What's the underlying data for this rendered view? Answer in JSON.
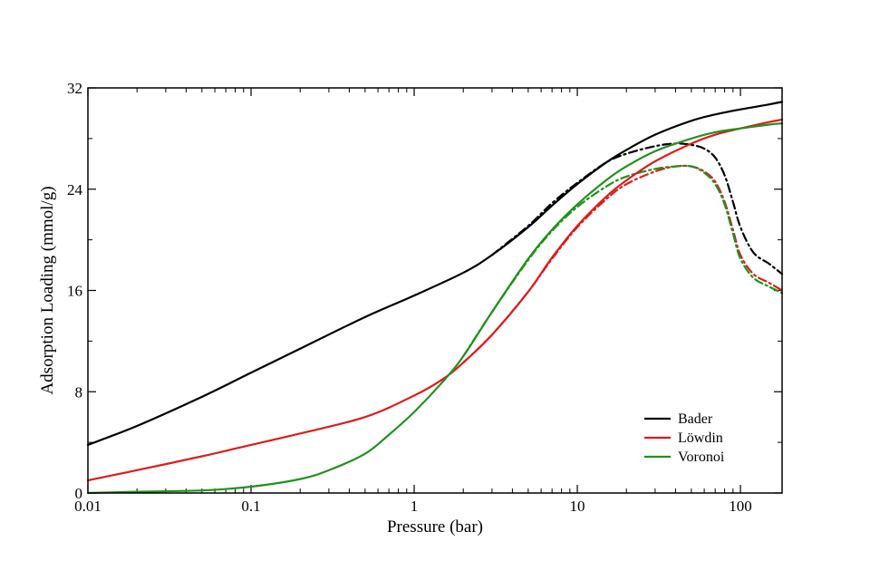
{
  "chart_data": {
    "type": "line",
    "title": "",
    "xlabel": "Pressure (bar)",
    "ylabel": "Adsorption Loading (mmol/g)",
    "xscale": "log",
    "xlim": [
      0.01,
      180
    ],
    "ylim": [
      0,
      32
    ],
    "xticks": [
      {
        "value": 0.01,
        "label": "0.01"
      },
      {
        "value": 0.1,
        "label": "0.1"
      },
      {
        "value": 1,
        "label": "1"
      },
      {
        "value": 10,
        "label": "10"
      },
      {
        "value": 100,
        "label": "100"
      }
    ],
    "yticks": [
      {
        "value": 0,
        "label": "0"
      },
      {
        "value": 8,
        "label": "8"
      },
      {
        "value": 16,
        "label": "16"
      },
      {
        "value": 24,
        "label": "24"
      },
      {
        "value": 32,
        "label": "32"
      }
    ],
    "grid": false,
    "legend_position": "bottom-right",
    "series": [
      {
        "name": "Bader",
        "color": "#000000",
        "style": "solid",
        "x": [
          0.01,
          0.02,
          0.05,
          0.1,
          0.2,
          0.5,
          1,
          2,
          3,
          5,
          7,
          10,
          15,
          20,
          30,
          50,
          70,
          100,
          150,
          180
        ],
        "y": [
          3.8,
          5.3,
          7.6,
          9.5,
          11.4,
          13.9,
          15.6,
          17.4,
          18.8,
          21.0,
          22.7,
          24.4,
          26.1,
          27.1,
          28.3,
          29.4,
          29.9,
          30.3,
          30.7,
          30.9
        ]
      },
      {
        "name": "Löwdin",
        "color": "#dd1c1c",
        "style": "solid",
        "x": [
          0.01,
          0.02,
          0.05,
          0.1,
          0.2,
          0.5,
          1,
          1.5,
          2,
          3,
          5,
          7,
          10,
          15,
          20,
          30,
          50,
          70,
          100,
          150,
          180
        ],
        "y": [
          1.0,
          1.8,
          2.9,
          3.8,
          4.7,
          6.0,
          7.7,
          9.0,
          10.3,
          12.5,
          15.9,
          18.6,
          21.1,
          23.4,
          24.7,
          26.2,
          27.6,
          28.3,
          28.8,
          29.3,
          29.5
        ]
      },
      {
        "name": "Voronoi",
        "color": "#22911f",
        "style": "solid",
        "x": [
          0.01,
          0.02,
          0.05,
          0.1,
          0.2,
          0.3,
          0.5,
          0.7,
          1,
          1.5,
          2,
          3,
          5,
          7,
          10,
          15,
          20,
          30,
          50,
          70,
          100,
          150,
          180
        ],
        "y": [
          0.0,
          0.1,
          0.2,
          0.5,
          1.1,
          1.8,
          3.1,
          4.6,
          6.4,
          8.8,
          10.8,
          14.3,
          18.5,
          20.8,
          22.8,
          24.7,
          25.8,
          27.0,
          28.0,
          28.5,
          28.8,
          29.1,
          29.2
        ]
      },
      {
        "name": "",
        "color": "#000000",
        "style": "dashdot",
        "x": [
          3,
          5,
          7,
          10,
          15,
          20,
          30,
          40,
          50,
          60,
          70,
          80,
          90,
          100,
          120,
          150,
          180
        ],
        "y": [
          18.8,
          21.1,
          22.9,
          24.5,
          26.1,
          26.8,
          27.4,
          27.6,
          27.5,
          27.2,
          26.5,
          25.1,
          23.0,
          21.0,
          19.0,
          18.1,
          17.3
        ]
      },
      {
        "name": "",
        "color": "#dd1c1c",
        "style": "dashdot",
        "x": [
          2,
          3,
          5,
          7,
          10,
          15,
          20,
          30,
          40,
          50,
          60,
          70,
          80,
          90,
          100,
          120,
          150,
          180
        ],
        "y": [
          10.3,
          12.5,
          15.9,
          18.5,
          21.0,
          23.2,
          24.4,
          25.4,
          25.8,
          25.8,
          25.4,
          24.6,
          23.0,
          20.8,
          18.8,
          17.3,
          16.6,
          16.0
        ]
      },
      {
        "name": "",
        "color": "#22911f",
        "style": "dashdot",
        "x": [
          2,
          3,
          5,
          7,
          10,
          15,
          20,
          30,
          40,
          50,
          60,
          70,
          80,
          90,
          100,
          120,
          150,
          180
        ],
        "y": [
          10.8,
          14.3,
          18.4,
          20.7,
          22.6,
          24.2,
          25.0,
          25.6,
          25.8,
          25.8,
          25.3,
          24.4,
          22.8,
          20.5,
          18.5,
          17.0,
          16.3,
          15.8
        ]
      }
    ]
  }
}
